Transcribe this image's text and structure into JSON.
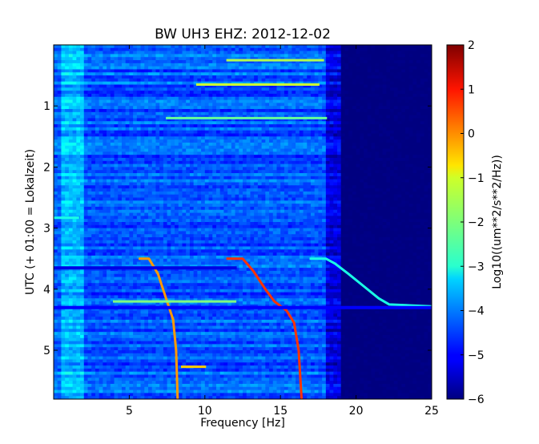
{
  "chart_data": {
    "type": "heatmap",
    "title": "BW UH3 EHZ: 2012-12-02",
    "xlabel": "Frequency [Hz]",
    "ylabel": "UTC (+ 01:00 = Lokalzeit)",
    "xlim": [
      0,
      25
    ],
    "ylim": [
      5.8,
      0
    ],
    "y_inverted": true,
    "x_ticks": [
      5,
      10,
      15,
      20,
      25
    ],
    "x_tick_labels": [
      "5",
      "10",
      "15",
      "20",
      "25"
    ],
    "y_ticks": [
      1,
      2,
      3,
      4,
      5
    ],
    "y_tick_labels": [
      "1",
      "2",
      "3",
      "4",
      "5"
    ],
    "colormap": "jet",
    "colorbar": {
      "label": "Log10((um**2/s**2/Hz))",
      "range": [
        -6,
        2
      ],
      "ticks": [
        2,
        1,
        0,
        -1,
        -2,
        -3,
        -4,
        -5,
        -6
      ],
      "tick_labels": [
        "2",
        "1",
        "0",
        "−1",
        "−2",
        "−3",
        "−4",
        "−5",
        "−6"
      ]
    },
    "background_levels": [
      {
        "freq_range": [
          0,
          0.5
        ],
        "level": -4.2
      },
      {
        "freq_range": [
          0.5,
          2
        ],
        "level": -3.5
      },
      {
        "freq_range": [
          2,
          18
        ],
        "level": -4.3
      },
      {
        "freq_range": [
          18,
          19
        ],
        "level": -5.2
      },
      {
        "freq_range": [
          19,
          25
        ],
        "level": -6.0
      }
    ],
    "features": [
      {
        "name": "curve-a",
        "level": -0.2,
        "points": [
          [
            5.7,
            3.5
          ],
          [
            6.3,
            3.5
          ],
          [
            6.9,
            3.75
          ],
          [
            7.5,
            4.2
          ],
          [
            7.9,
            4.5
          ],
          [
            8.1,
            5.0
          ],
          [
            8.2,
            5.8
          ]
        ]
      },
      {
        "name": "curve-b",
        "level": 0.6,
        "points": [
          [
            11.5,
            3.5
          ],
          [
            12.5,
            3.5
          ],
          [
            13.2,
            3.7
          ],
          [
            14.0,
            4.0
          ],
          [
            14.6,
            4.2
          ],
          [
            15.4,
            4.35
          ],
          [
            15.9,
            4.55
          ],
          [
            16.2,
            5.0
          ],
          [
            16.4,
            5.8
          ]
        ]
      },
      {
        "name": "curve-c",
        "level": -2.8,
        "points": [
          [
            17.0,
            3.5
          ],
          [
            18.0,
            3.5
          ],
          [
            18.6,
            3.58
          ],
          [
            19.5,
            3.75
          ],
          [
            20.5,
            3.95
          ],
          [
            21.5,
            4.15
          ],
          [
            22.2,
            4.25
          ],
          [
            25.0,
            4.28
          ]
        ]
      },
      {
        "name": "stripe-c1",
        "level": -1.6,
        "points": [
          [
            11.5,
            0.25
          ],
          [
            17.8,
            0.25
          ]
        ]
      },
      {
        "name": "stripe-c2",
        "level": -1.4,
        "points": [
          [
            9.5,
            0.65
          ],
          [
            17.5,
            0.65
          ]
        ]
      },
      {
        "name": "stripe-c3",
        "level": -2.2,
        "points": [
          [
            7.5,
            1.2
          ],
          [
            18,
            1.2
          ]
        ]
      },
      {
        "name": "stripe-d1",
        "level": -2.0,
        "points": [
          [
            4.0,
            4.2
          ],
          [
            12.0,
            4.2
          ]
        ]
      },
      {
        "name": "stripe-d2",
        "level": -0.6,
        "points": [
          [
            8.5,
            5.27
          ],
          [
            10.0,
            5.27
          ]
        ]
      },
      {
        "name": "stripe-low",
        "level": -2.8,
        "points": [
          [
            0.1,
            2.83
          ],
          [
            1.6,
            2.83
          ]
        ]
      },
      {
        "name": "band-4p3",
        "level": -5.0,
        "points": [
          [
            0,
            4.3
          ],
          [
            25,
            4.3
          ]
        ]
      },
      {
        "name": "band-3p65",
        "level": -5.2,
        "points": [
          [
            0,
            3.65
          ],
          [
            12,
            3.65
          ]
        ]
      }
    ]
  }
}
